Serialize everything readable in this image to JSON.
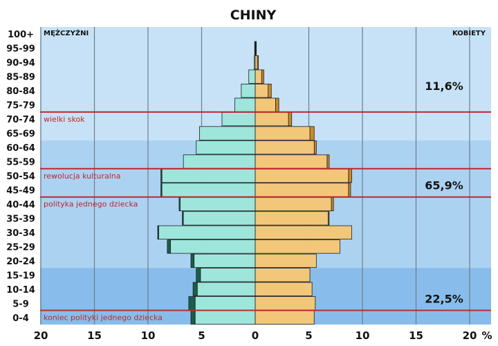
{
  "chart_data": {
    "type": "bar",
    "subtype": "population-pyramid",
    "title": "CHINY",
    "left_label": "MĘŻCZYŹNI",
    "right_label": "KOBIETY",
    "x_unit": "%",
    "x_ticks": [
      "20",
      "15",
      "10",
      "5",
      "0",
      "5",
      "10",
      "15",
      "20"
    ],
    "xlim": [
      -20,
      20
    ],
    "grid": true,
    "categories": [
      "100+",
      "95-99",
      "90-94",
      "85-89",
      "80-84",
      "75-79",
      "70-74",
      "65-69",
      "60-64",
      "55-59",
      "50-54",
      "45-49",
      "40-44",
      "35-39",
      "30-34",
      "25-29",
      "20-24",
      "15-19",
      "10-14",
      "5-9",
      "0-4"
    ],
    "series": [
      {
        "side": "left",
        "base_color": "#9ee6dc",
        "excess_color": "#1a5e4a",
        "values": [
          0.0,
          0.05,
          0.1,
          0.6,
          1.3,
          1.9,
          3.1,
          5.2,
          5.5,
          6.7,
          8.8,
          8.8,
          7.1,
          6.8,
          9.1,
          8.2,
          6.0,
          5.5,
          5.8,
          6.2,
          6.0
        ],
        "base_values": [
          0.0,
          0.05,
          0.1,
          0.6,
          1.3,
          1.9,
          3.1,
          5.2,
          5.5,
          6.7,
          8.7,
          8.7,
          7.0,
          6.7,
          9.0,
          7.9,
          5.7,
          5.1,
          5.4,
          5.6,
          5.6
        ]
      },
      {
        "side": "right",
        "base_color": "#f2c77a",
        "excess_color": "#c98a2a",
        "values": [
          0.0,
          0.1,
          0.3,
          0.8,
          1.5,
          2.2,
          3.4,
          5.5,
          5.7,
          6.9,
          9.0,
          8.9,
          7.3,
          6.9,
          9.0,
          7.9,
          5.7,
          5.1,
          5.3,
          5.6,
          5.5
        ],
        "base_values": [
          0.0,
          0.05,
          0.2,
          0.6,
          1.2,
          1.9,
          3.1,
          5.1,
          5.5,
          6.7,
          8.7,
          8.7,
          7.1,
          6.8,
          9.0,
          7.9,
          5.7,
          5.1,
          5.3,
          5.6,
          5.5
        ]
      }
    ],
    "annotations": [
      {
        "text": "wielki skok",
        "between_rows": [
          "70-74",
          "75-79"
        ]
      },
      {
        "text": "rewolucja kulturalna",
        "between_rows": [
          "50-54",
          "55-59"
        ]
      },
      {
        "text": "polityka jednego dziecka",
        "between_rows": [
          "40-44",
          "45-49"
        ]
      },
      {
        "text": "koniec polityki jednego dziecka",
        "between_rows": [
          "0-4",
          "5-9"
        ]
      }
    ],
    "group_percentages": [
      {
        "text": "11,6%",
        "row": "80-84"
      },
      {
        "text": "65,9%",
        "row": "45-49"
      },
      {
        "text": "22,5%",
        "row": "5-9"
      }
    ],
    "colors": {
      "band_light": "#c7e2f6",
      "band_mid": "#acd2f2",
      "band_dark": "#88bdeb",
      "gridline": "#6d7a87",
      "event_line": "#c0262c",
      "event_text": "#c0262c"
    }
  }
}
